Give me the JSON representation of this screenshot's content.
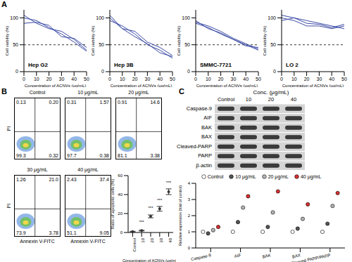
{
  "panel_labels": [
    "A",
    "B",
    "C"
  ],
  "chart_data": [
    {
      "type": "line",
      "title": "Hep G2",
      "x": [
        0,
        10,
        20,
        30,
        40,
        50
      ],
      "xlim": [
        0,
        50
      ],
      "xticks": [
        0,
        10,
        20,
        30,
        40,
        50
      ],
      "ylim": [
        0,
        115
      ],
      "yticks": [
        0,
        50,
        100
      ],
      "x_label": "Concentration of ACNVs (μg/mL)",
      "y_label": "Cell viability (%)",
      "threshold": 50,
      "series": [
        {
          "color": "#3b4ba5",
          "values": [
            105,
            90,
            80,
            75,
            60,
            40
          ]
        },
        {
          "color": "#3b4ba5",
          "values": [
            100,
            95,
            82,
            70,
            55,
            38
          ]
        },
        {
          "color": "#3b4ba5",
          "values": [
            90,
            92,
            86,
            65,
            62,
            45
          ]
        }
      ]
    },
    {
      "type": "line",
      "title": "Hep 3B",
      "x": [
        0,
        10,
        20,
        30,
        40,
        50
      ],
      "xlim": [
        0,
        50
      ],
      "xticks": [
        0,
        10,
        20,
        30,
        40,
        50
      ],
      "ylim": [
        0,
        115
      ],
      "yticks": [
        0,
        50,
        100
      ],
      "x_label": "Concentration of ACNVs (μg/mL)",
      "y_label": "Cell viability (%)",
      "threshold": 50,
      "series": [
        {
          "color": "#3b4ba5",
          "values": [
            105,
            80,
            75,
            55,
            45,
            30
          ]
        },
        {
          "color": "#3b4ba5",
          "values": [
            95,
            85,
            70,
            50,
            40,
            25
          ]
        },
        {
          "color": "#3b4ba5",
          "values": [
            100,
            80,
            65,
            52,
            35,
            28
          ]
        }
      ]
    },
    {
      "type": "line",
      "title": "SMMC-7721",
      "x": [
        0,
        10,
        20,
        30,
        40,
        50
      ],
      "xlim": [
        0,
        50
      ],
      "xticks": [
        0,
        10,
        20,
        30,
        40,
        50
      ],
      "ylim": [
        0,
        115
      ],
      "yticks": [
        0,
        50,
        100
      ],
      "x_label": "Concentration of ACNVs (μg/mL)",
      "y_label": "Cell viability (%)",
      "threshold": 50,
      "series": [
        {
          "color": "#3b4ba5",
          "values": [
            90,
            82,
            70,
            60,
            50,
            40
          ]
        },
        {
          "color": "#3b4ba5",
          "values": [
            95,
            80,
            72,
            60,
            48,
            45
          ]
        },
        {
          "color": "#3b4ba5",
          "values": [
            92,
            85,
            75,
            62,
            52,
            42
          ]
        }
      ]
    },
    {
      "type": "line",
      "title": "LO 2",
      "x": [
        0,
        10,
        20,
        30,
        40,
        50
      ],
      "xlim": [
        0,
        50
      ],
      "xticks": [
        0,
        10,
        20,
        30,
        40,
        50
      ],
      "ylim": [
        0,
        115
      ],
      "yticks": [
        0,
        50,
        100
      ],
      "x_label": "Concentration of ACNVs (μg/mL)",
      "y_label": "Cell viability (%)",
      "threshold": 50,
      "series": [
        {
          "color": "#3b4ba5",
          "values": [
            100,
            95,
            85,
            85,
            80,
            85
          ]
        },
        {
          "color": "#3b4ba5",
          "values": [
            95,
            100,
            95,
            90,
            85,
            80
          ]
        },
        {
          "color": "#3b4ba5",
          "values": [
            105,
            100,
            90,
            88,
            82,
            88
          ]
        }
      ]
    },
    {
      "type": "scatter",
      "categories": [
        "Control",
        "10",
        "20",
        "30",
        "40"
      ],
      "values": [
        1,
        2,
        17,
        25,
        43
      ],
      "errors": [
        0.3,
        0.4,
        1.5,
        2.5,
        3
      ],
      "annotations": [
        null,
        "***",
        "***",
        "***",
        "***"
      ],
      "ylim": [
        0,
        60
      ],
      "yticks": [
        0,
        20,
        40,
        60
      ],
      "x_label": "Concentration of ACNVs (μg/mL)",
      "y_label": "Ratio of apoptotic cells (%)",
      "color": "#333333"
    },
    {
      "type": "scatter",
      "categories": [
        "Caspase-9",
        "AIF",
        "BAK",
        "BAX",
        "Cleaved PARP/PARP"
      ],
      "ylim": [
        0,
        4
      ],
      "yticks": [
        0,
        1,
        2,
        3,
        4
      ],
      "y_label": "Relative expression (fold of control)",
      "legend": "top",
      "series": [
        {
          "name": "Control",
          "color": "#ffffff",
          "values": [
            1,
            1,
            1,
            1,
            1
          ]
        },
        {
          "name": "10 μg/mL",
          "color": "#555555",
          "values": [
            0.9,
            1.6,
            1.3,
            1.2,
            1.5
          ]
        },
        {
          "name": "20 μg/mL",
          "color": "#b5b5b5",
          "values": [
            1.1,
            2.5,
            2.2,
            1.8,
            2.6
          ]
        },
        {
          "name": "40 μg/mL",
          "color": "#d93030",
          "values": [
            1.3,
            3.2,
            3.5,
            2.7,
            3.4
          ]
        }
      ]
    }
  ],
  "flow_plots": {
    "x_label": "Annexin V-FITC",
    "y_label": "PI",
    "plots": [
      {
        "title": "Control",
        "quadrants": {
          "ul": "0.13",
          "ur": "0.20",
          "ll": "99.3",
          "lr": "0.32"
        }
      },
      {
        "title": "10 μg/mL",
        "quadrants": {
          "ul": "0.31",
          "ur": "1.57",
          "ll": "97.7",
          "lr": "0.38"
        }
      },
      {
        "title": "20 μg/mL",
        "quadrants": {
          "ul": "0.91",
          "ur": "14.6",
          "ll": "81.1",
          "lr": "3.38"
        }
      },
      {
        "title": "30 μg/mL",
        "quadrants": {
          "ul": "1.26",
          "ur": "21.0",
          "ll": "73.9",
          "lr": "3.78"
        }
      },
      {
        "title": "40 μg/mL",
        "quadrants": {
          "ul": "2.43",
          "ur": "37.4",
          "ll": "51.1",
          "lr": "9.05"
        }
      }
    ]
  },
  "blot": {
    "header": "Conc. (μg/mL)",
    "lanes": [
      "Control",
      "10",
      "20",
      "40"
    ],
    "proteins": [
      "Caspase-9",
      "AIF",
      "BAK",
      "BAX",
      "Cleaved-PARP",
      "PARP",
      "β-actin"
    ]
  }
}
